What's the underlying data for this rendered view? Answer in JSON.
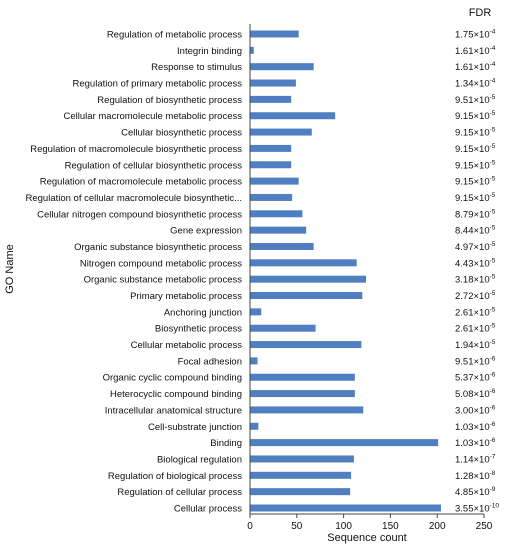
{
  "chart_data": {
    "type": "bar",
    "orientation": "horizontal",
    "title": "",
    "xlabel": "Sequence count",
    "ylabel": "GO Name",
    "xlim": [
      0,
      250
    ],
    "xticks": [
      "0",
      "50",
      "100",
      "150",
      "200",
      "250"
    ],
    "grid": false,
    "bar_color": "#4f7fc0",
    "annotation_header": "FDR",
    "categories": [
      "Regulation of metabolic process",
      "Integrin binding",
      "Response to stimulus",
      "Regulation of primary metabolic process",
      "Regulation of biosynthetic process",
      "Cellular macromolecule metabolic process",
      "Cellular biosynthetic process",
      "Regulation of macromolecule biosynthetic process",
      "Regulation of cellular biosynthetic process",
      "Regulation of macromolecule metabolic process",
      "Regulation of cellular macromolecule biosynthetic...",
      "Cellular nitrogen compound biosynthetic process",
      "Gene expression",
      "Organic substance biosynthetic process",
      "Nitrogen compound metabolic process",
      "Organic substance metabolic process",
      "Primary metabolic process",
      "Anchoring junction",
      "Biosynthetic process",
      "Cellular metabolic process",
      "Focal adhesion",
      "Organic cyclic compound binding",
      "Heterocyclic compound binding",
      "Intracellular anatomical structure",
      "Cell-substrate junction",
      "Binding",
      "Biological regulation",
      "Regulation of biological process",
      "Regulation of cellular process",
      "Cellular process"
    ],
    "values": [
      52,
      4,
      68,
      49,
      44,
      91,
      66,
      44,
      44,
      52,
      45,
      56,
      60,
      68,
      114,
      124,
      120,
      12,
      70,
      119,
      8,
      112,
      112,
      121,
      9,
      201,
      111,
      108,
      107,
      204
    ],
    "fdr_mantissa": [
      "1.75",
      "1.61",
      "1.61",
      "1.34",
      "9.51",
      "9.15",
      "9.15",
      "9.15",
      "9.15",
      "9.15",
      "9.15",
      "8.79",
      "8.44",
      "4.97",
      "4.43",
      "3.18",
      "2.72",
      "2.61",
      "2.61",
      "1.94",
      "9.51",
      "5.37",
      "5.08",
      "3.00",
      "1.03",
      "1.03",
      "1.14",
      "1.28",
      "4.85",
      "3.55"
    ],
    "fdr_exponent": [
      "-4",
      "-4",
      "-4",
      "-4",
      "-5",
      "-5",
      "-5",
      "-5",
      "-5",
      "-5",
      "-5",
      "-5",
      "-5",
      "-5",
      "-5",
      "-5",
      "-5",
      "-5",
      "-5",
      "-5",
      "-6",
      "-6",
      "-6",
      "-6",
      "-6",
      "-6",
      "-7",
      "-8",
      "-9",
      "-10"
    ]
  }
}
